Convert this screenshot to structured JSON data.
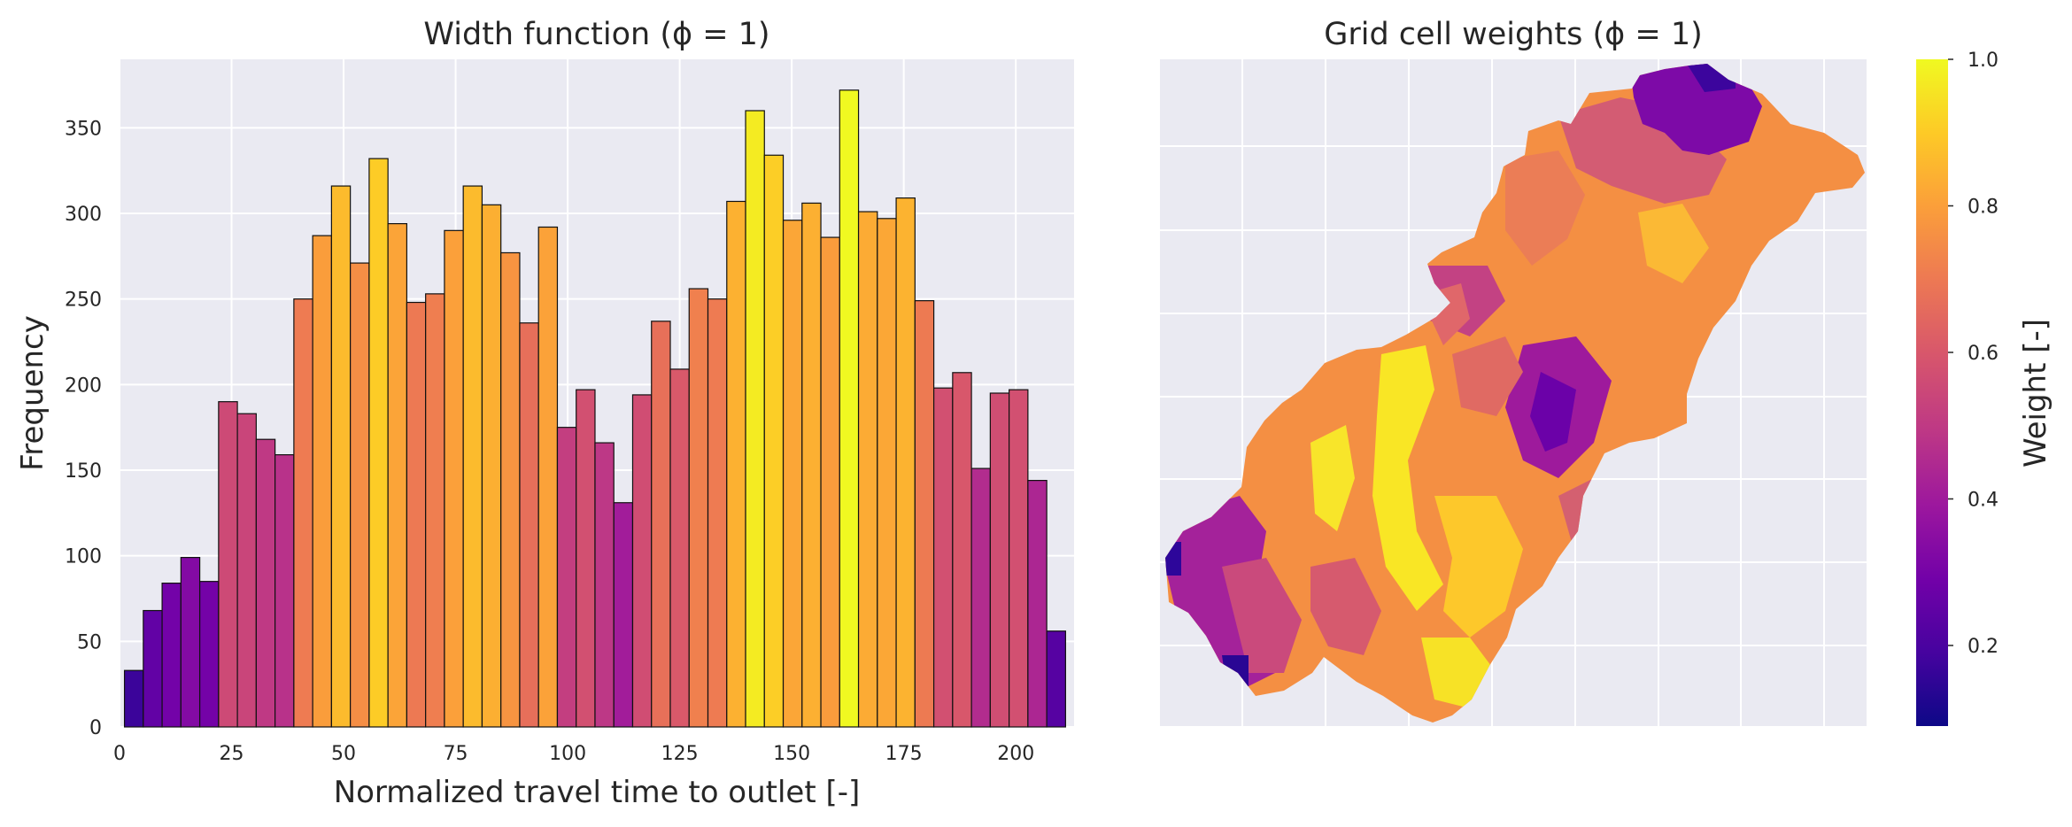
{
  "chart_data": [
    {
      "type": "bar",
      "title": "Width function (ϕ = 1)",
      "xlabel": "Normalized travel time to outlet [-]",
      "ylabel": "Frequency",
      "xlim": [
        0,
        213
      ],
      "ylim": [
        0,
        390
      ],
      "xticks": [
        0,
        25,
        50,
        75,
        100,
        125,
        150,
        175,
        200
      ],
      "yticks": [
        0,
        50,
        100,
        150,
        200,
        250,
        300,
        350
      ],
      "grid": true,
      "bin_width": 4.2,
      "bin_start": 1.1,
      "values": [
        33,
        68,
        84,
        99,
        85,
        190,
        183,
        168,
        159,
        250,
        287,
        316,
        271,
        332,
        294,
        248,
        253,
        290,
        316,
        305,
        277,
        236,
        292,
        175,
        197,
        166,
        131,
        194,
        237,
        209,
        256,
        250,
        307,
        360,
        334,
        296,
        306,
        286,
        372,
        301,
        297,
        309,
        249,
        198,
        207,
        151,
        195,
        197,
        144,
        56
      ],
      "colormap": "plasma",
      "colormap_stops": [
        "#0d0887",
        "#46039f",
        "#7201a8",
        "#9c179e",
        "#bd3786",
        "#d8576b",
        "#ed7953",
        "#fb9f3a",
        "#fdca26",
        "#f0f921"
      ]
    },
    {
      "type": "heatmap",
      "title": "Grid cell weights (ϕ = 1)",
      "colorbar_label": "Weight [-]",
      "colorbar_ticks": [
        "0.2",
        "0.4",
        "0.6",
        "0.8",
        "1.0"
      ],
      "colorbar_range": [
        0.09,
        1.0
      ],
      "colormap": "plasma",
      "grid": true,
      "ticks_labeled": false
    }
  ]
}
